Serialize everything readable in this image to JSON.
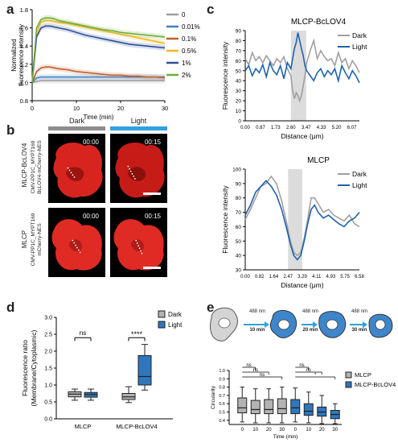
{
  "panel_labels": {
    "a": "a",
    "b": "b",
    "c": "c",
    "d": "d",
    "e": "e"
  },
  "panel_a": {
    "ylabel": "Normalized\nfluorescence intensity",
    "xlabel": "Time (min)",
    "legend": [
      {
        "name": "0",
        "color": "#9e9e9e"
      },
      {
        "name": "0.01%",
        "color": "#3d7fc4"
      },
      {
        "name": "0.1%",
        "color": "#c0622b"
      },
      {
        "name": "0.5%",
        "color": "#f2b824"
      },
      {
        "name": "1%",
        "color": "#2e4f9a"
      },
      {
        "name": "2%",
        "color": "#6fae3c"
      }
    ]
  },
  "panel_b": {
    "dark_label": "Dark",
    "light_label": "Light",
    "dark_bar_color": "#8c8c8c",
    "light_bar_color": "#2fa0df",
    "row1_name": "MLCP-BcLOV4",
    "row1_construct": "CMV-PP1C_MYPT169\nBcLOV4-mCherry-NES",
    "row2_name": "MLCP",
    "row2_construct": "CMV-PP1C_MYPT169\nmCherry-NES",
    "t0": "00:00",
    "t1": "00:15"
  },
  "panel_c": {
    "top_title": "MLCP-BcLOV4",
    "bottom_title": "MLCP",
    "ylabel": "Fluorescence intensity",
    "xlabel": "Distance (μm)",
    "legend_dark": "Dark",
    "legend_light": "Light",
    "dark_color": "#a0a0a0",
    "light_color": "#1f63ad"
  },
  "panel_d": {
    "ylabel": "Fluorescence ratio\n(Membrane/Cytoplasmic)",
    "legend_dark": "Dark",
    "legend_light": "Light",
    "sig_ns": "ns",
    "sig_star": "****"
  },
  "panel_e": {
    "steps": [
      {
        "line1": "488 nm",
        "line2": "10 min"
      },
      {
        "line1": "488 nm",
        "line2": "20 min"
      },
      {
        "line1": "488 nm",
        "line2": "30 min"
      }
    ],
    "ylabel": "Circularity",
    "xlabel": "Time (min)",
    "legend_mlcp": "MLCP",
    "legend_bclov": "MLCP-BcLOV4",
    "sig": [
      "ns",
      "ns",
      "ns",
      "*",
      "ns",
      "ns"
    ]
  },
  "chart_data": [
    {
      "panel": "a",
      "type": "line",
      "xlabel": "Time (min)",
      "ylabel": "Normalized fluorescence intensity",
      "xlim": [
        0,
        30
      ],
      "ylim": [
        0.8,
        1.8
      ],
      "xticks": [
        0,
        10,
        20,
        30
      ],
      "yticks": [
        0.8,
        1.0,
        1.2,
        1.4,
        1.6,
        1.8
      ],
      "x": [
        0,
        1,
        2,
        3,
        4,
        5,
        6,
        8,
        10,
        12,
        14,
        16,
        18,
        20,
        22,
        24,
        26,
        28,
        30
      ],
      "series": [
        {
          "name": "0",
          "values": [
            1.0,
            1.01,
            1.02,
            1.02,
            1.02,
            1.02,
            1.02,
            1.02,
            1.02,
            1.02,
            1.02,
            1.02,
            1.02,
            1.02,
            1.02,
            1.02,
            1.02,
            1.02,
            1.02
          ]
        },
        {
          "name": "0.01%",
          "values": [
            1.0,
            1.05,
            1.06,
            1.06,
            1.06,
            1.06,
            1.06,
            1.06,
            1.06,
            1.06,
            1.06,
            1.06,
            1.06,
            1.06,
            1.06,
            1.06,
            1.06,
            1.06,
            1.06
          ]
        },
        {
          "name": "0.1%",
          "values": [
            1.0,
            1.12,
            1.16,
            1.17,
            1.17,
            1.16,
            1.15,
            1.14,
            1.12,
            1.11,
            1.1,
            1.09,
            1.08,
            1.08,
            1.07,
            1.07,
            1.06,
            1.06,
            1.05
          ]
        },
        {
          "name": "0.5%",
          "values": [
            1.0,
            1.55,
            1.66,
            1.68,
            1.68,
            1.67,
            1.66,
            1.65,
            1.63,
            1.61,
            1.59,
            1.57,
            1.55,
            1.53,
            1.51,
            1.49,
            1.47,
            1.45,
            1.43
          ]
        },
        {
          "name": "1%",
          "values": [
            1.0,
            1.5,
            1.6,
            1.62,
            1.62,
            1.61,
            1.6,
            1.58,
            1.55,
            1.52,
            1.5,
            1.48,
            1.46,
            1.44,
            1.42,
            1.41,
            1.4,
            1.39,
            1.38
          ]
        },
        {
          "name": "2%",
          "values": [
            1.0,
            1.6,
            1.69,
            1.71,
            1.71,
            1.7,
            1.68,
            1.66,
            1.64,
            1.62,
            1.6,
            1.58,
            1.57,
            1.55,
            1.54,
            1.53,
            1.52,
            1.51,
            1.5
          ]
        }
      ]
    },
    {
      "panel": "c-top",
      "type": "line",
      "title": "MLCP-BcLOV4",
      "xlabel": "Distance (μm)",
      "ylabel": "Fluorescence intensity",
      "xlim": [
        0,
        6.5
      ],
      "ylim": [
        0,
        90
      ],
      "xticks": [
        "0.00",
        "0.87",
        "1.73",
        "2.60",
        "3.47",
        "4.33",
        "5.20",
        "6.07"
      ],
      "yticks": [
        0,
        10,
        20,
        30,
        40,
        50,
        60,
        70,
        80,
        90
      ],
      "shaded_region": [
        2.6,
        3.47
      ],
      "series": [
        {
          "name": "Dark",
          "x": [
            0,
            0.2,
            0.4,
            0.6,
            0.8,
            1.0,
            1.2,
            1.4,
            1.6,
            1.8,
            2.0,
            2.2,
            2.4,
            2.6,
            2.7,
            2.8,
            2.9,
            3.0,
            3.1,
            3.2,
            3.3,
            3.4,
            3.5,
            3.7,
            3.9,
            4.1,
            4.3,
            4.5,
            4.7,
            4.9,
            5.1,
            5.3,
            5.5,
            5.7,
            5.9,
            6.1,
            6.3,
            6.5
          ],
          "values": [
            62,
            56,
            68,
            60,
            64,
            58,
            65,
            60,
            55,
            62,
            58,
            64,
            52,
            45,
            30,
            22,
            28,
            25,
            20,
            25,
            35,
            45,
            58,
            70,
            80,
            62,
            70,
            64,
            60,
            62,
            55,
            68,
            58,
            62,
            52,
            60,
            55,
            48
          ]
        },
        {
          "name": "Light",
          "x": [
            0,
            0.2,
            0.4,
            0.6,
            0.8,
            1.0,
            1.2,
            1.4,
            1.6,
            1.8,
            2.0,
            2.2,
            2.4,
            2.6,
            2.7,
            2.8,
            2.9,
            3.0,
            3.1,
            3.2,
            3.3,
            3.4,
            3.5,
            3.7,
            3.9,
            4.1,
            4.3,
            4.5,
            4.7,
            4.9,
            5.1,
            5.3,
            5.5,
            5.7,
            5.9,
            6.1,
            6.3,
            6.5
          ],
          "values": [
            50,
            55,
            45,
            52,
            48,
            56,
            44,
            58,
            50,
            46,
            55,
            42,
            58,
            52,
            62,
            72,
            78,
            88,
            80,
            72,
            65,
            55,
            50,
            45,
            40,
            48,
            52,
            44,
            50,
            46,
            52,
            40,
            55,
            48,
            42,
            50,
            45,
            38
          ]
        }
      ]
    },
    {
      "panel": "c-bottom",
      "type": "line",
      "title": "MLCP",
      "xlabel": "Distance (μm)",
      "ylabel": "Fluorescence intensity",
      "xlim": [
        0,
        6.58
      ],
      "ylim": [
        30,
        100
      ],
      "xticks": [
        "0.00",
        "0.82",
        "1.64",
        "2.47",
        "3.29",
        "4.11",
        "4.93",
        "5.75",
        "6.58"
      ],
      "yticks": [
        30,
        40,
        50,
        60,
        70,
        80,
        90,
        100
      ],
      "shaded_region": [
        2.47,
        3.29
      ],
      "series": [
        {
          "name": "Dark",
          "x": [
            0,
            0.3,
            0.6,
            0.9,
            1.2,
            1.5,
            1.8,
            2.1,
            2.4,
            2.6,
            2.8,
            3.0,
            3.2,
            3.4,
            3.6,
            3.8,
            4.0,
            4.2,
            4.5,
            4.8,
            5.1,
            5.4,
            5.7,
            6.0,
            6.3,
            6.58
          ],
          "values": [
            65,
            72,
            80,
            88,
            90,
            95,
            90,
            78,
            62,
            50,
            42,
            40,
            42,
            52,
            65,
            80,
            80,
            76,
            70,
            72,
            68,
            66,
            64,
            68,
            62,
            60
          ]
        },
        {
          "name": "Light",
          "x": [
            0,
            0.3,
            0.6,
            0.9,
            1.2,
            1.5,
            1.8,
            2.1,
            2.4,
            2.6,
            2.8,
            3.0,
            3.2,
            3.4,
            3.6,
            3.8,
            4.0,
            4.2,
            4.5,
            4.8,
            5.1,
            5.4,
            5.7,
            6.0,
            6.3,
            6.58
          ],
          "values": [
            68,
            75,
            84,
            88,
            92,
            88,
            82,
            72,
            58,
            48,
            40,
            37,
            40,
            50,
            62,
            72,
            75,
            70,
            66,
            68,
            65,
            62,
            60,
            64,
            66,
            70
          ]
        }
      ]
    },
    {
      "panel": "d",
      "type": "box",
      "ylabel": "Fluorescence ratio (Membrane/Cytoplasmic)",
      "ylim": [
        0,
        3.0
      ],
      "yticks": [
        0,
        0.5,
        1.0,
        1.5,
        2.0,
        2.5,
        3.0
      ],
      "categories": [
        "MLCP",
        "MLCP-BcLOV4"
      ],
      "series": [
        {
          "name": "Dark",
          "boxes": [
            {
              "min": 0.55,
              "q1": 0.65,
              "median": 0.73,
              "q3": 0.8,
              "max": 0.88
            },
            {
              "min": 0.48,
              "q1": 0.57,
              "median": 0.65,
              "q3": 0.75,
              "max": 0.95
            }
          ]
        },
        {
          "name": "Light",
          "boxes": [
            {
              "min": 0.55,
              "q1": 0.64,
              "median": 0.72,
              "q3": 0.78,
              "max": 0.88
            },
            {
              "min": 0.85,
              "q1": 1.0,
              "median": 1.25,
              "q3": 1.87,
              "max": 2.2
            }
          ]
        }
      ]
    },
    {
      "panel": "e",
      "type": "box",
      "xlabel": "Time (min)",
      "ylabel": "Circularity",
      "ylim": [
        0.35,
        1.0
      ],
      "yticks": [
        0.4,
        0.5,
        0.6,
        0.7,
        0.8,
        0.9,
        1.0
      ],
      "categories": [
        "0",
        "10",
        "20",
        "30",
        "0",
        "10",
        "20",
        "30"
      ],
      "series": [
        {
          "name": "MLCP",
          "boxes": [
            {
              "min": 0.38,
              "q1": 0.49,
              "median": 0.55,
              "q3": 0.67,
              "max": 0.8
            },
            {
              "min": 0.37,
              "q1": 0.48,
              "median": 0.53,
              "q3": 0.64,
              "max": 0.78
            },
            {
              "min": 0.37,
              "q1": 0.48,
              "median": 0.53,
              "q3": 0.65,
              "max": 0.78
            },
            {
              "min": 0.37,
              "q1": 0.48,
              "median": 0.54,
              "q3": 0.66,
              "max": 0.8
            }
          ]
        },
        {
          "name": "MLCP-BcLOV4",
          "boxes": [
            {
              "min": 0.38,
              "q1": 0.48,
              "median": 0.55,
              "q3": 0.65,
              "max": 0.79
            },
            {
              "min": 0.37,
              "q1": 0.46,
              "median": 0.51,
              "q3": 0.6,
              "max": 0.74
            },
            {
              "min": 0.36,
              "q1": 0.45,
              "median": 0.5,
              "q3": 0.56,
              "max": 0.7
            },
            {
              "min": 0.36,
              "q1": 0.42,
              "median": 0.47,
              "q3": 0.52,
              "max": 0.6
            }
          ]
        }
      ]
    }
  ]
}
